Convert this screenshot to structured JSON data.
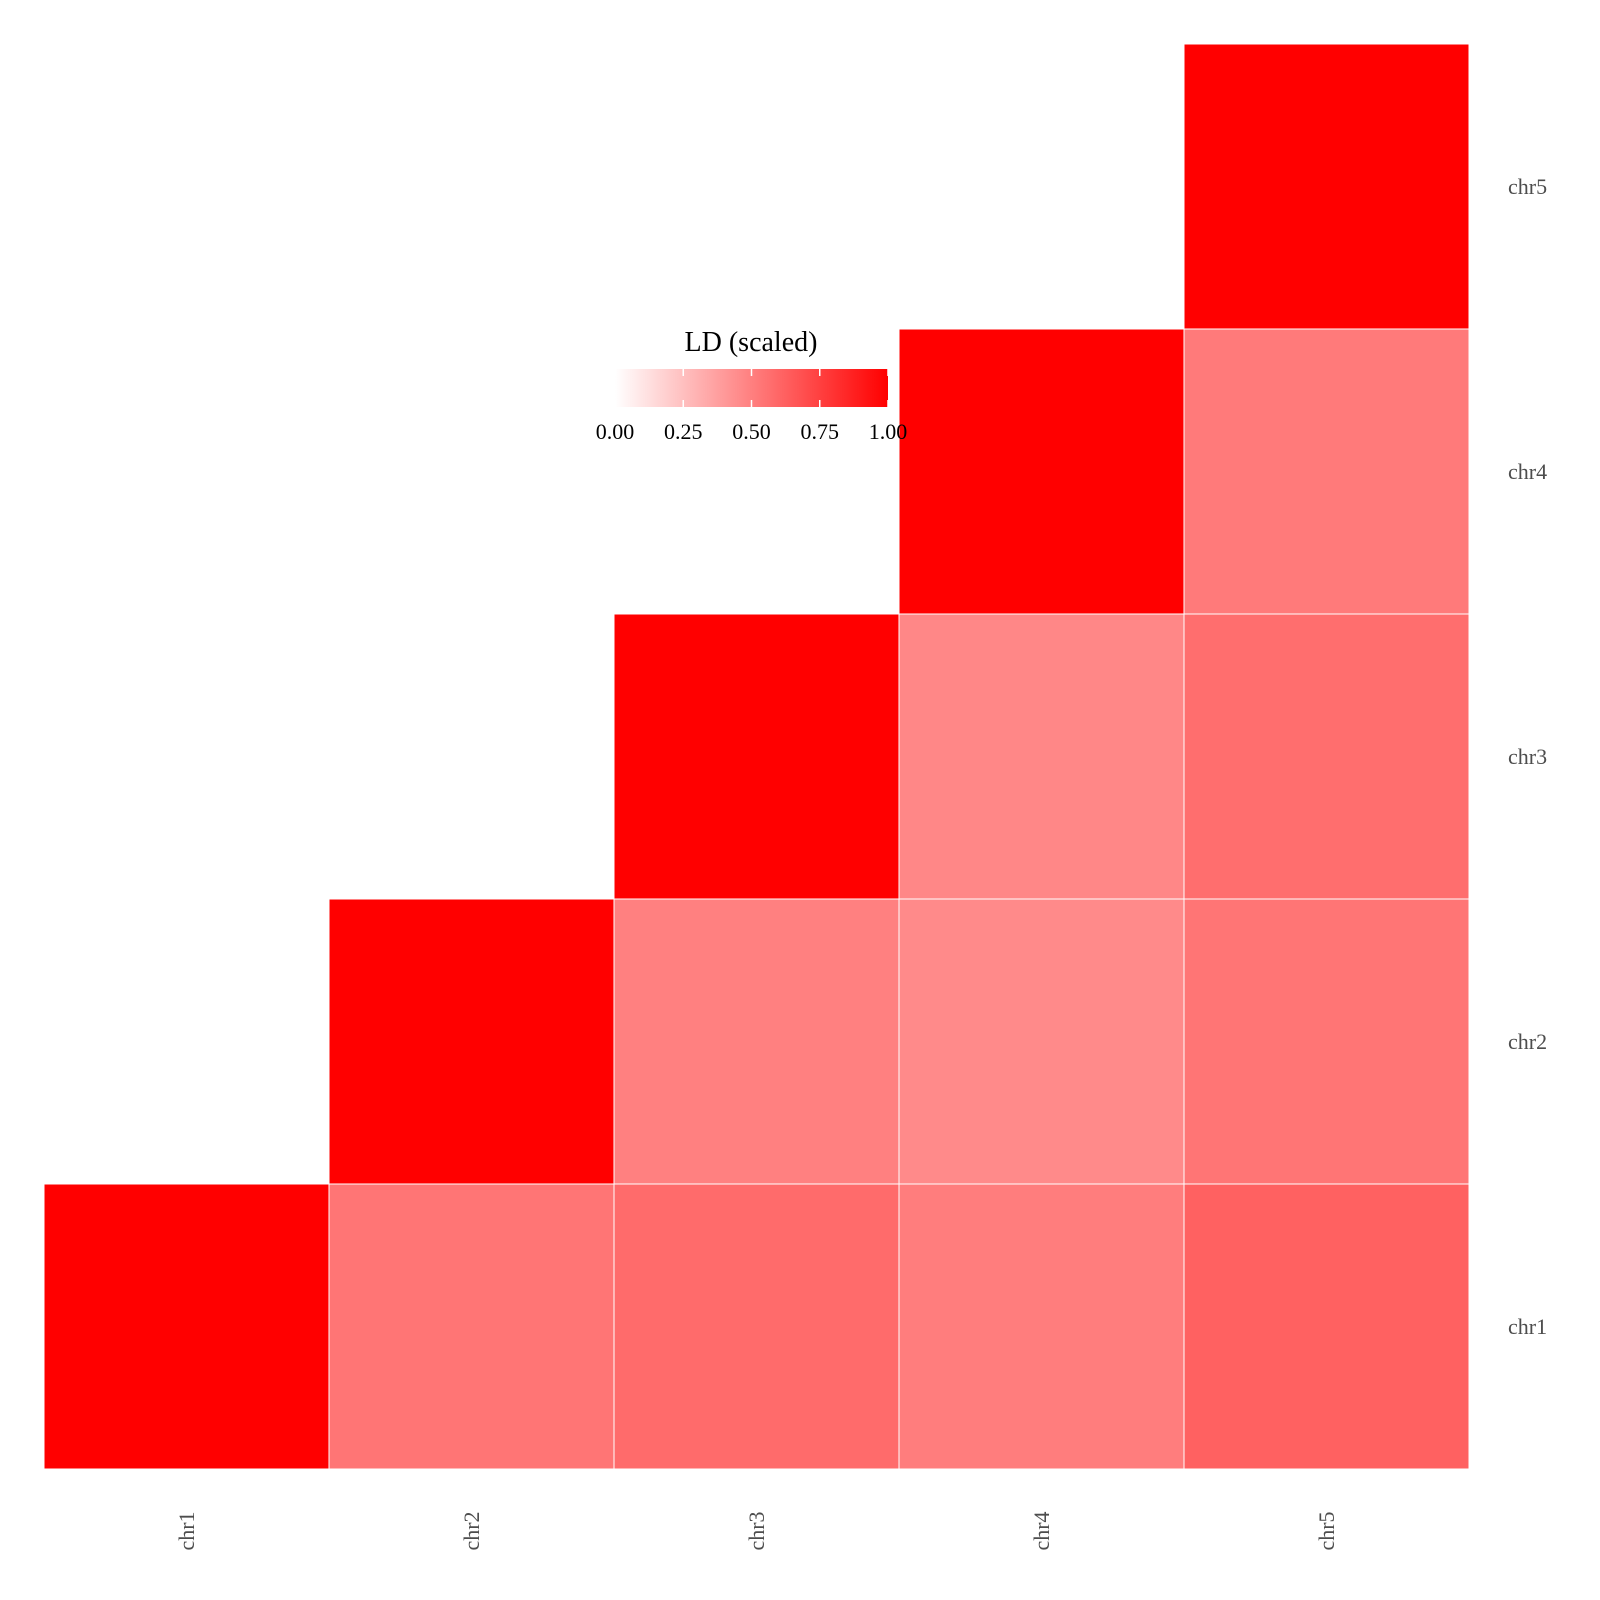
{
  "chart_data": {
    "type": "heatmap",
    "x_categories": [
      "chr1",
      "chr2",
      "chr3",
      "chr4",
      "chr5"
    ],
    "y_categories": [
      "chr1",
      "chr2",
      "chr3",
      "chr4",
      "chr5"
    ],
    "cells": [
      {
        "x": "chr1",
        "y": "chr1",
        "value": 1.0
      },
      {
        "x": "chr2",
        "y": "chr1",
        "value": 0.54
      },
      {
        "x": "chr3",
        "y": "chr1",
        "value": 0.58
      },
      {
        "x": "chr4",
        "y": "chr1",
        "value": 0.51
      },
      {
        "x": "chr5",
        "y": "chr1",
        "value": 0.62
      },
      {
        "x": "chr2",
        "y": "chr2",
        "value": 1.0
      },
      {
        "x": "chr3",
        "y": "chr2",
        "value": 0.5
      },
      {
        "x": "chr4",
        "y": "chr2",
        "value": 0.46
      },
      {
        "x": "chr5",
        "y": "chr2",
        "value": 0.54
      },
      {
        "x": "chr3",
        "y": "chr3",
        "value": 1.0
      },
      {
        "x": "chr4",
        "y": "chr3",
        "value": 0.47
      },
      {
        "x": "chr5",
        "y": "chr3",
        "value": 0.57
      },
      {
        "x": "chr4",
        "y": "chr4",
        "value": 1.0
      },
      {
        "x": "chr5",
        "y": "chr4",
        "value": 0.52
      },
      {
        "x": "chr5",
        "y": "chr5",
        "value": 1.0
      }
    ],
    "legend": {
      "title": "LD (scaled)",
      "ticks": [
        "0.00",
        "0.25",
        "0.50",
        "0.75",
        "1.00"
      ],
      "tick_values": [
        0,
        0.25,
        0.5,
        0.75,
        1.0
      ],
      "range": [
        0,
        1
      ],
      "low_color": "#ffffff",
      "high_color": "#ff0000",
      "placement": "top-center"
    },
    "tile_border_color": "#ffffff",
    "grid": false
  }
}
